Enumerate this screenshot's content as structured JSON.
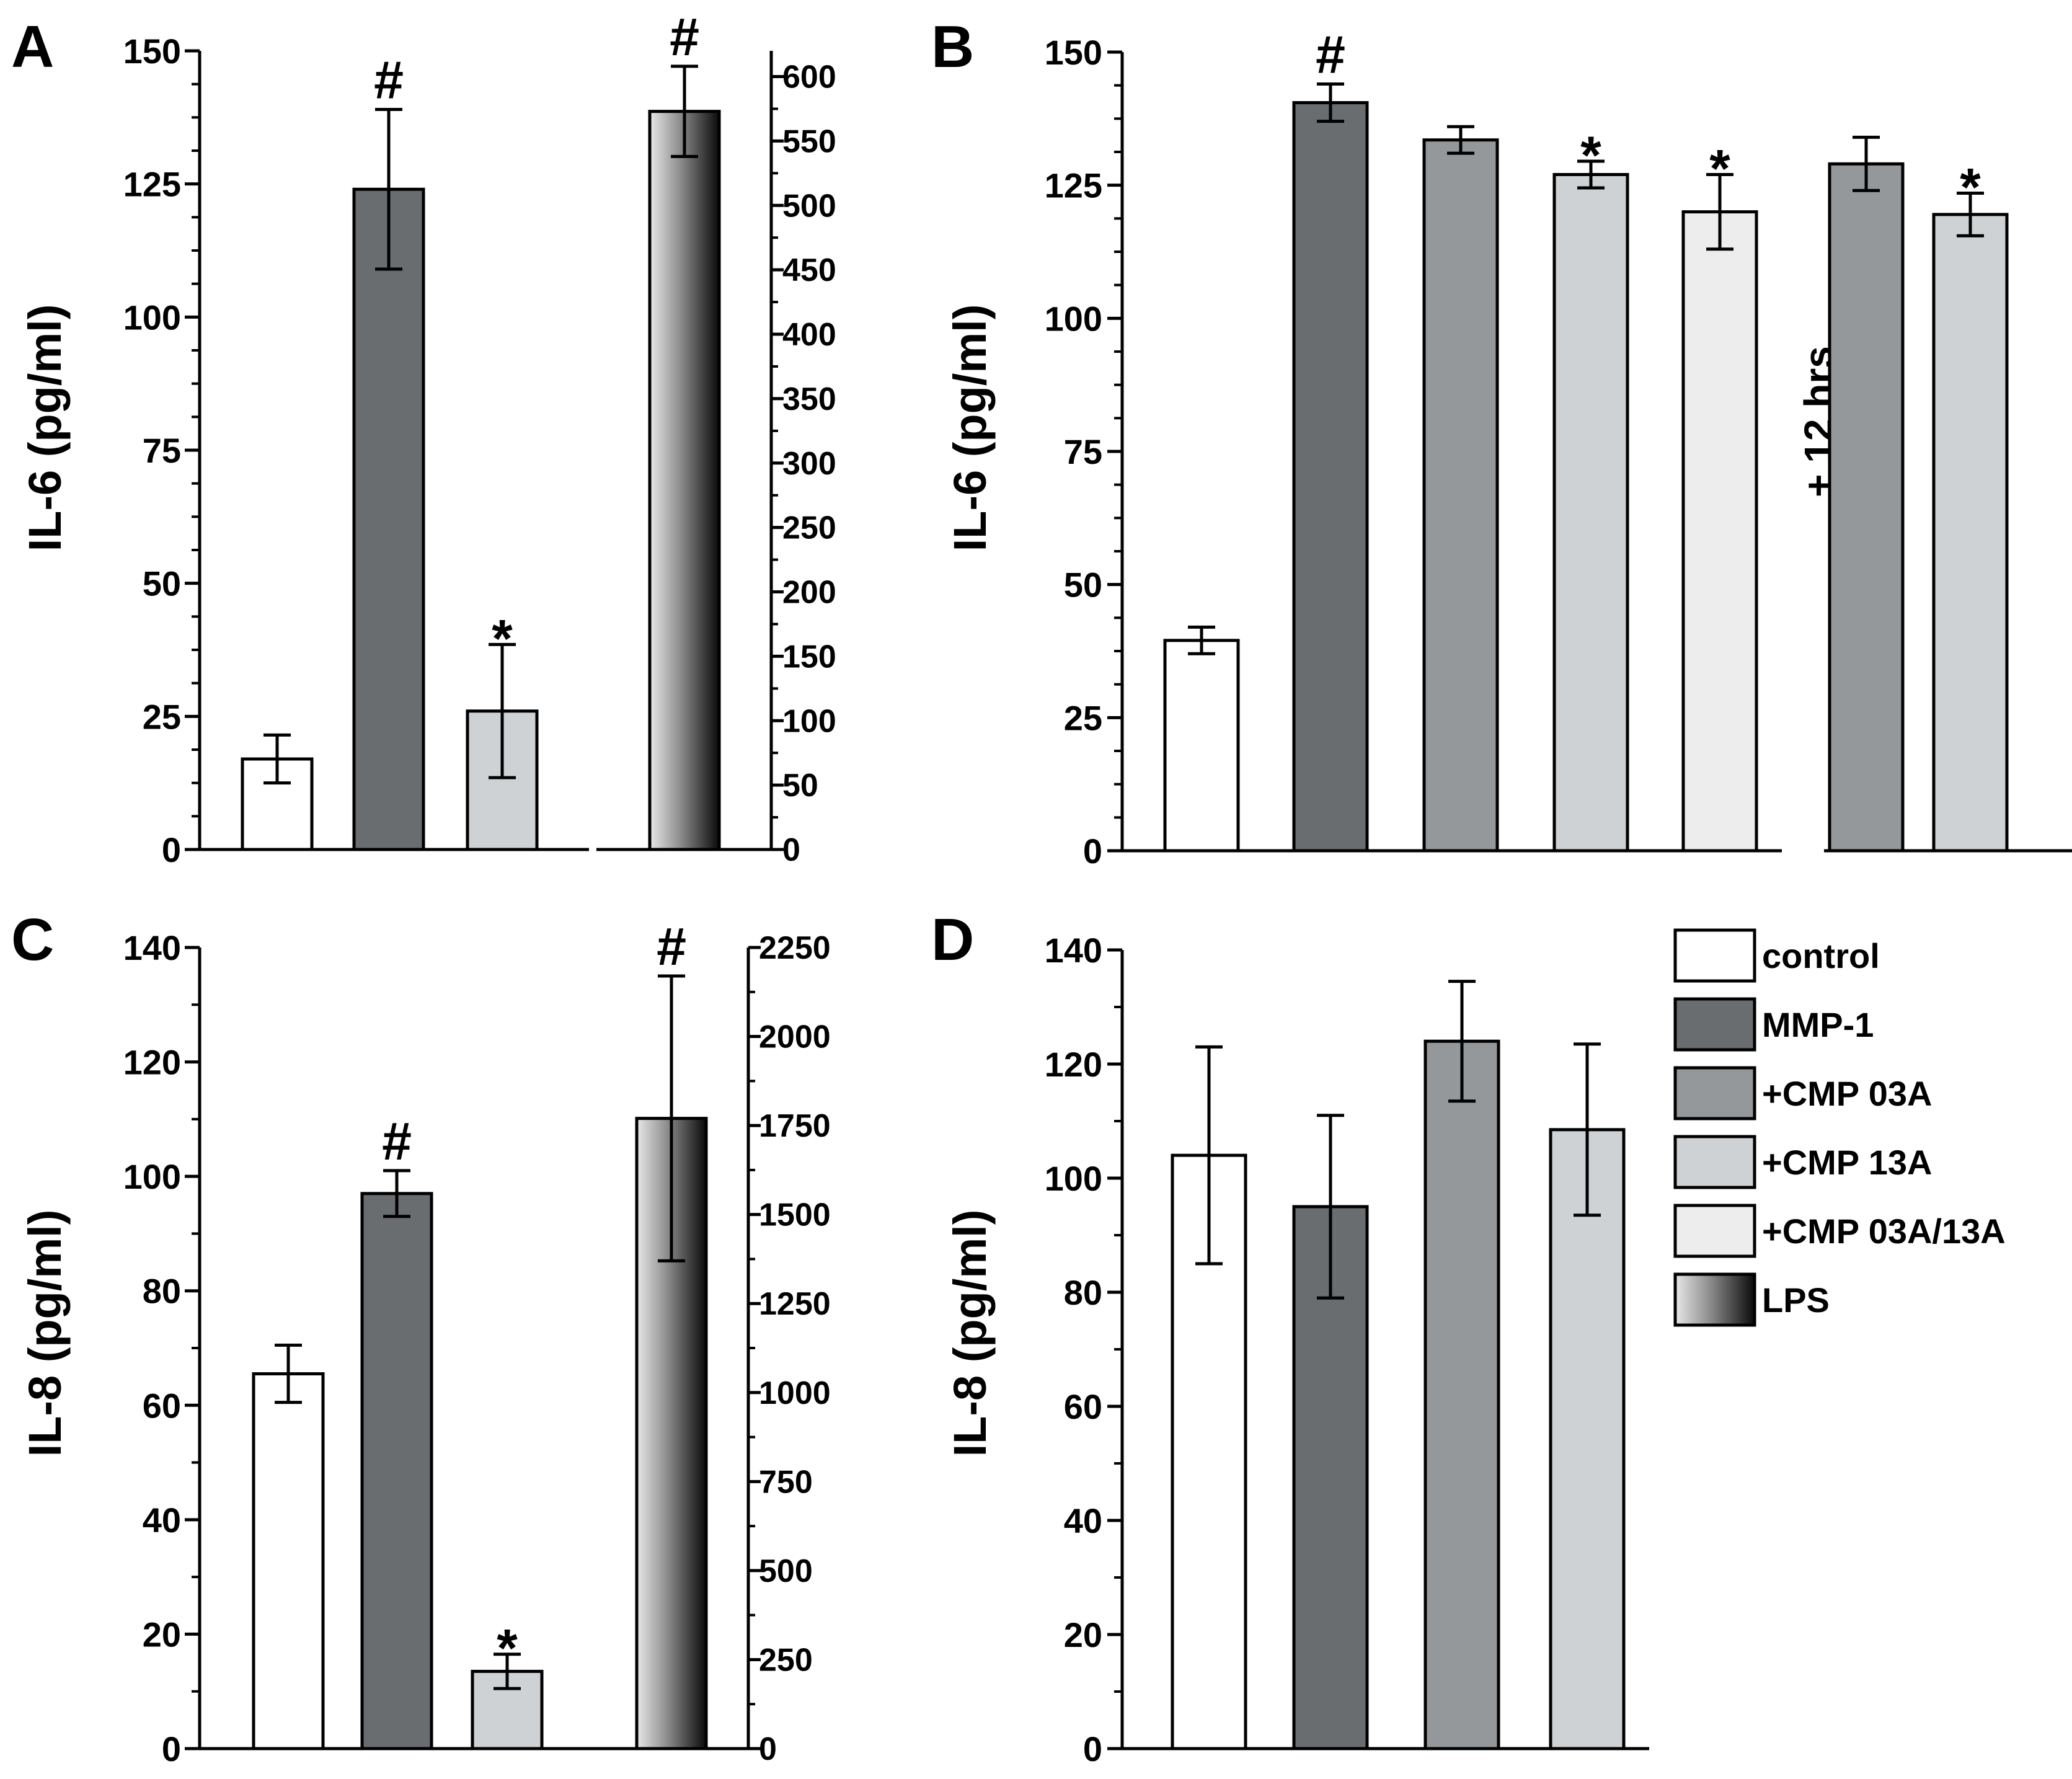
{
  "colors": {
    "control": "#ffffff",
    "MMP-1": "#6a6d70",
    "+CMP 03A": "#95989b",
    "+CMP 13A": "#cfd2d4",
    "+CMP 03A/13A": "#ededee",
    "LPS": "gradient-black-white"
  },
  "legend": {
    "items": [
      {
        "label": "control",
        "key": "control"
      },
      {
        "label": "MMP-1",
        "key": "MMP-1"
      },
      {
        "label": "+CMP 03A",
        "key": "+CMP 03A"
      },
      {
        "label": "+CMP 13A",
        "key": "+CMP 13A"
      },
      {
        "label": "+CMP 03A/13A",
        "key": "+CMP 03A/13A"
      },
      {
        "label": "LPS",
        "key": "LPS"
      }
    ]
  },
  "chart_data": [
    {
      "panel": "A",
      "type": "bar",
      "ylabel": "IL-6 (pg/ml)",
      "ylim": [
        0,
        150
      ],
      "yticks": [
        "0",
        "25",
        "50",
        "75",
        "100",
        "125",
        "150"
      ],
      "categories": [
        "control",
        "MMP-1",
        "+CMP 13A"
      ],
      "values": [
        17,
        124,
        26
      ],
      "errors": [
        4.5,
        15,
        12.5
      ],
      "markers": [
        "",
        "#",
        "*"
      ],
      "secondary": {
        "ylim": [
          0,
          620
        ],
        "yticks": [
          "0",
          "50",
          "100",
          "150",
          "200",
          "250",
          "300",
          "350",
          "400",
          "450",
          "500",
          "550",
          "600"
        ],
        "categories": [
          "LPS"
        ],
        "values": [
          573
        ],
        "errors": [
          35
        ],
        "markers": [
          "#"
        ]
      }
    },
    {
      "panel": "B",
      "type": "bar",
      "ylabel": "IL-6 (pg/ml)",
      "ylim": [
        0,
        150
      ],
      "yticks": [
        "0",
        "25",
        "50",
        "75",
        "100",
        "125",
        "150"
      ],
      "categories": [
        "control",
        "MMP-1",
        "+CMP 03A",
        "+CMP 13A",
        "+CMP 03A/13A"
      ],
      "values": [
        39.5,
        140.5,
        133.5,
        127,
        120
      ],
      "errors": [
        2.5,
        3.5,
        2.5,
        2.5,
        7
      ],
      "markers": [
        "",
        "#",
        "",
        "*",
        "*"
      ],
      "secondary": {
        "label": "+ 12 hrs",
        "categories": [
          "+CMP 03A",
          "+CMP 13A"
        ],
        "values": [
          129,
          119.5
        ],
        "errors": [
          5,
          4
        ],
        "markers": [
          "",
          "*"
        ]
      }
    },
    {
      "panel": "C",
      "type": "bar",
      "ylabel": "IL-8 (pg/ml)",
      "ylim": [
        0,
        140
      ],
      "yticks": [
        "0",
        "20",
        "40",
        "60",
        "80",
        "100",
        "120",
        "140"
      ],
      "categories": [
        "control",
        "MMP-1",
        "+CMP 13A"
      ],
      "values": [
        65.5,
        97,
        13.5
      ],
      "errors": [
        5,
        4,
        3
      ],
      "markers": [
        "",
        "#",
        "*"
      ],
      "secondary": {
        "ylim": [
          0,
          2250
        ],
        "yticks": [
          "0",
          "250",
          "500",
          "750",
          "1000",
          "1250",
          "1500",
          "1750",
          "2000",
          "2250"
        ],
        "categories": [
          "LPS"
        ],
        "values": [
          1770
        ],
        "errors": [
          400
        ],
        "markers": [
          "#"
        ]
      }
    },
    {
      "panel": "D",
      "type": "bar",
      "ylabel": "IL-8 (pg/ml)",
      "ylim": [
        0,
        140
      ],
      "yticks": [
        "0",
        "20",
        "40",
        "60",
        "80",
        "100",
        "120",
        "140"
      ],
      "categories": [
        "control",
        "MMP-1",
        "+CMP 03A",
        "+CMP 13A"
      ],
      "values": [
        104,
        95,
        124,
        108.5
      ],
      "errors": [
        19,
        16,
        10.5,
        15
      ],
      "markers": [
        "",
        "",
        "",
        ""
      ]
    }
  ]
}
